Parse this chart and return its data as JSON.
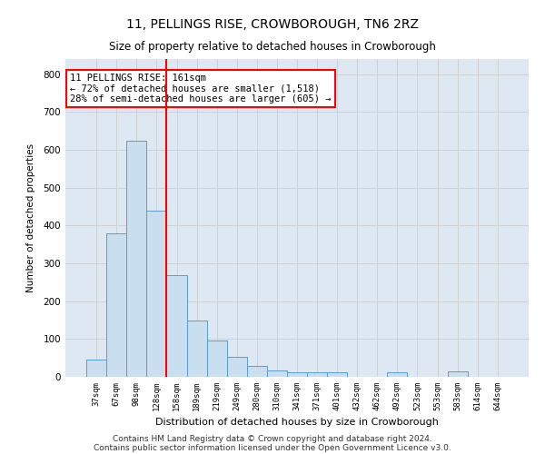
{
  "title_line1": "11, PELLINGS RISE, CROWBOROUGH, TN6 2RZ",
  "title_line2": "Size of property relative to detached houses in Crowborough",
  "xlabel": "Distribution of detached houses by size in Crowborough",
  "ylabel": "Number of detached properties",
  "footer_line1": "Contains HM Land Registry data © Crown copyright and database right 2024.",
  "footer_line2": "Contains public sector information licensed under the Open Government Licence v3.0.",
  "bar_labels": [
    "37sqm",
    "67sqm",
    "98sqm",
    "128sqm",
    "158sqm",
    "189sqm",
    "219sqm",
    "249sqm",
    "280sqm",
    "310sqm",
    "341sqm",
    "371sqm",
    "401sqm",
    "432sqm",
    "462sqm",
    "492sqm",
    "523sqm",
    "553sqm",
    "583sqm",
    "614sqm",
    "644sqm"
  ],
  "bar_values": [
    45,
    380,
    625,
    440,
    268,
    150,
    95,
    52,
    30,
    18,
    12,
    12,
    12,
    0,
    0,
    12,
    0,
    0,
    15,
    0,
    0
  ],
  "bar_color": "#c9dff0",
  "bar_edge_color": "#5b9bd5",
  "vline_color": "red",
  "vline_pos": 3.5,
  "annotation_line1": "11 PELLINGS RISE: 161sqm",
  "annotation_line2": "← 72% of detached houses are smaller (1,518)",
  "annotation_line3": "28% of semi-detached houses are larger (605) →",
  "annotation_box_color": "white",
  "annotation_box_edge": "red",
  "ylim": [
    0,
    840
  ],
  "yticks": [
    0,
    100,
    200,
    300,
    400,
    500,
    600,
    700,
    800
  ],
  "grid_color": "#cccccc",
  "background_color": "#dde8f3",
  "fig_width": 6.0,
  "fig_height": 5.0,
  "dpi": 100
}
